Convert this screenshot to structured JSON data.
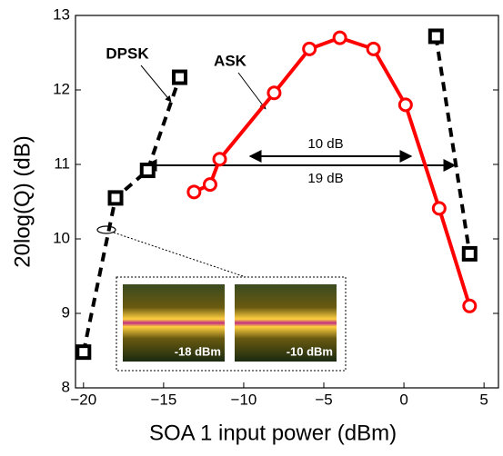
{
  "chart_data": {
    "type": "line",
    "x_label": "SOA 1 input power (dBm)",
    "y_label": "20log(Q) (dB)",
    "xlim": [
      -20.5,
      5.9
    ],
    "ylim": [
      8,
      13
    ],
    "xticks": [
      {
        "value": -20,
        "label": "−20"
      },
      {
        "value": -15,
        "label": "−15"
      },
      {
        "value": -10,
        "label": "−10"
      },
      {
        "value": -5,
        "label": "−5"
      },
      0,
      5
    ],
    "yticks": [
      8,
      9,
      10,
      11,
      12,
      13
    ],
    "series": [
      {
        "name": "DPSK",
        "color": "#000000",
        "dashed": true,
        "marker": "square",
        "x": [
          -20,
          -18,
          -16,
          -14,
          null,
          2,
          4.1
        ],
        "values": [
          8.48,
          10.55,
          10.92,
          12.17,
          null,
          12.72,
          9.8
        ]
      },
      {
        "name": "ASK",
        "color": "#ff0000",
        "dashed": false,
        "marker": "circle",
        "x": [
          -13.1,
          -12.1,
          -11.5,
          -8.1,
          -5.9,
          -4,
          -1.9,
          0.1,
          2.2,
          4.1
        ],
        "values": [
          10.63,
          10.73,
          11.07,
          11.96,
          12.55,
          12.7,
          12.55,
          11.8,
          10.41,
          9.1
        ]
      }
    ],
    "annotations": [
      "10 dB",
      "19 dB",
      "-18 dBm",
      "-10 dBm"
    ]
  }
}
